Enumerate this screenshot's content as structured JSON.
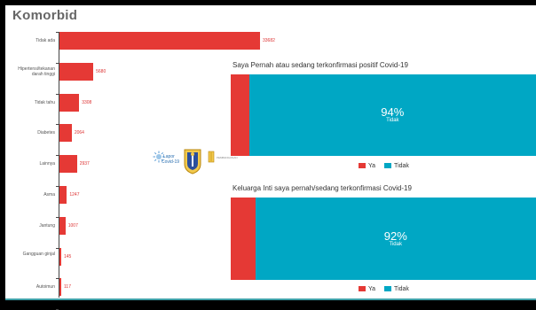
{
  "header": {
    "title": "Komorbid"
  },
  "chart_data": [
    {
      "type": "bar",
      "orientation": "horizontal",
      "title": "Komorbid",
      "categories": [
        "Tidak ada",
        "Hipertensi/tekanan darah tinggi",
        "Tidak tahu",
        "Diabetes",
        "Lainnya",
        "Asma",
        "Jantung",
        "Gangguan ginjal",
        "Autoimun"
      ],
      "values": [
        33682,
        5680,
        3308,
        2064,
        2937,
        1247,
        1007,
        145,
        117
      ],
      "value_labels": [
        "33682",
        "5680",
        "3308",
        "2064",
        "2937",
        "1247",
        "1007",
        "145",
        "117"
      ],
      "bar_color": "#e53935"
    },
    {
      "type": "bar",
      "orientation": "horizontal",
      "stacked": "100%",
      "title": "Saya Pernah atau sedang terkonfirmasi positif Covid-19",
      "series": [
        {
          "name": "Ya",
          "values": [
            6
          ]
        },
        {
          "name": "Tidak",
          "values": [
            94
          ]
        }
      ],
      "label": {
        "percent": "94%",
        "name": "Tidak"
      },
      "colors": {
        "Ya": "#e53935",
        "Tidak": "#00a7c4"
      },
      "legend": "bottom"
    },
    {
      "type": "bar",
      "orientation": "horizontal",
      "stacked": "100%",
      "title": "Keluarga Inti saya pernah/sedang terkonfirmasi Covid-19",
      "series": [
        {
          "name": "Ya",
          "values": [
            8
          ]
        },
        {
          "name": "Tidak",
          "values": [
            92
          ]
        }
      ],
      "label": {
        "percent": "92%",
        "name": "Tidak"
      },
      "colors": {
        "Ya": "#e53935",
        "Tidak": "#00a7c4"
      },
      "legend": "bottom"
    }
  ],
  "logos": {
    "lapor_line1": "Lapor",
    "lapor_line2": "Covid-19",
    "third_logo_text": "PEMBANGUNAN"
  }
}
